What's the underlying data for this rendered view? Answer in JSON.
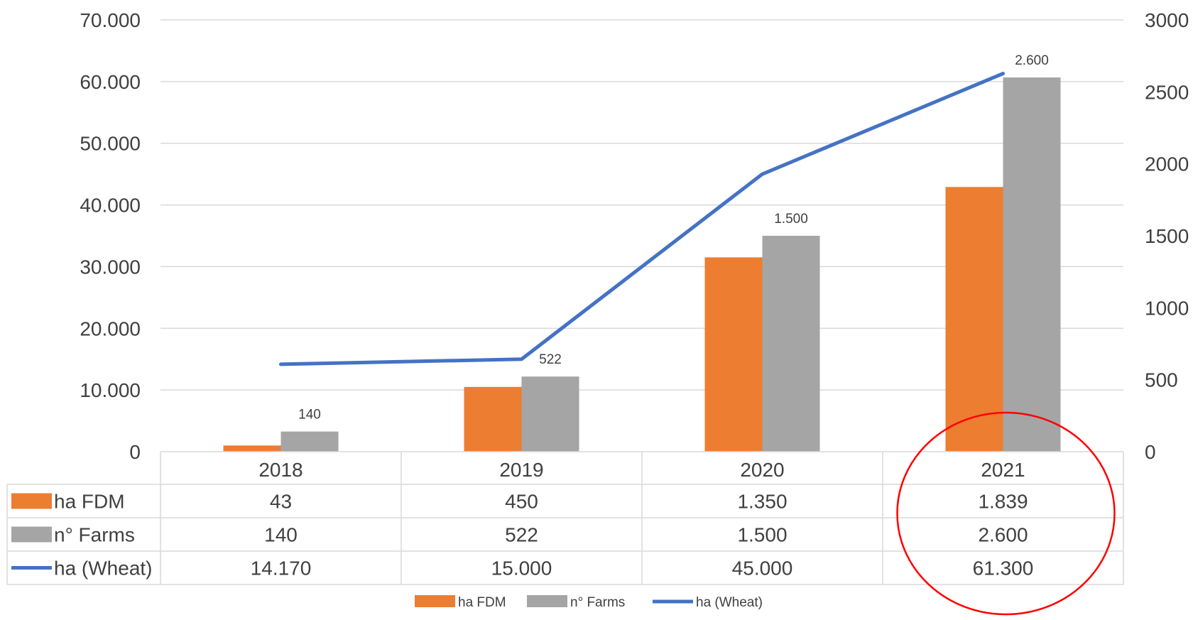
{
  "chart_data": {
    "type": "bar",
    "categories": [
      "2018",
      "2019",
      "2020",
      "2021"
    ],
    "left_axis": {
      "ticks": [
        "0",
        "10.000",
        "20.000",
        "30.000",
        "40.000",
        "50.000",
        "60.000",
        "70.000"
      ],
      "ylim": [
        0,
        70000
      ]
    },
    "right_axis": {
      "ticks": [
        "0",
        "500",
        "1000",
        "1500",
        "2000",
        "2500",
        "3000"
      ],
      "ylim": [
        0,
        3000
      ]
    },
    "series": [
      {
        "name": "ha FDM",
        "kind": "bar",
        "axis": "right",
        "color": "#ED7D31",
        "values": [
          43,
          450,
          1350,
          1839
        ],
        "table_labels": [
          "43",
          "450",
          "1.350",
          "1.839"
        ]
      },
      {
        "name": "n° Farms",
        "kind": "bar",
        "axis": "right",
        "color": "#A5A5A5",
        "values": [
          140,
          522,
          1500,
          2600
        ],
        "table_labels": [
          "140",
          "522",
          "1.500",
          "2.600"
        ],
        "data_labels": [
          "140",
          "522",
          "1.500",
          "2.600"
        ]
      },
      {
        "name": "ha (Wheat)",
        "kind": "line",
        "axis": "left",
        "color": "#4472C4",
        "values": [
          14170,
          15000,
          45000,
          61300
        ],
        "table_labels": [
          "14.170",
          "15.000",
          "45.000",
          "61.300"
        ]
      }
    ],
    "annotation": {
      "shape": "circle",
      "color": "#FF0000",
      "highlighted_category": "2021"
    },
    "grid": true,
    "legend": "bottom"
  }
}
